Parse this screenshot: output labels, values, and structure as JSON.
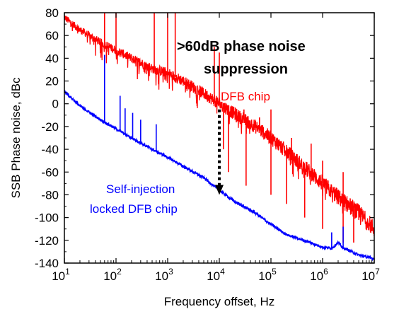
{
  "chart_data": {
    "type": "line",
    "xlabel": "Frequency offset, Hz",
    "ylabel": "SSB Phase noise, dBc",
    "x_scale": "log",
    "xlim": [
      10,
      10000000
    ],
    "ylim": [
      -140,
      80
    ],
    "x_ticks": [
      {
        "value": 10,
        "base": "10",
        "exp": "1"
      },
      {
        "value": 100,
        "base": "10",
        "exp": "2"
      },
      {
        "value": 1000,
        "base": "10",
        "exp": "3"
      },
      {
        "value": 10000,
        "base": "10",
        "exp": "4"
      },
      {
        "value": 100000,
        "base": "10",
        "exp": "5"
      },
      {
        "value": 1000000,
        "base": "10",
        "exp": "6"
      },
      {
        "value": 10000000,
        "base": "10",
        "exp": "7"
      }
    ],
    "y_ticks": [
      80,
      60,
      40,
      20,
      0,
      -20,
      -40,
      -60,
      -80,
      -100,
      -120,
      -140
    ],
    "grid": false,
    "series": [
      {
        "name": "DFB chip",
        "color": "#ff0000",
        "points": [
          [
            10,
            76
          ],
          [
            20,
            65
          ],
          [
            50,
            54
          ],
          [
            100,
            47
          ],
          [
            200,
            40
          ],
          [
            500,
            31
          ],
          [
            1000,
            27
          ],
          [
            2000,
            20
          ],
          [
            5000,
            9
          ],
          [
            10000,
            0
          ],
          [
            20000,
            -9
          ],
          [
            50000,
            -20
          ],
          [
            100000,
            -30
          ],
          [
            200000,
            -42
          ],
          [
            500000,
            -58
          ],
          [
            1000000,
            -70
          ],
          [
            2000000,
            -82
          ],
          [
            5000000,
            -96
          ],
          [
            10000000,
            -110
          ]
        ],
        "spikes": [
          [
            60,
            85
          ],
          [
            100,
            85
          ],
          [
            550,
            85
          ],
          [
            1000,
            82
          ],
          [
            1400,
            82
          ],
          [
            8000,
            50
          ],
          [
            10000,
            45
          ],
          [
            30000,
            -5
          ],
          [
            60000,
            -12
          ],
          [
            100000,
            -5
          ],
          [
            250000,
            -30
          ],
          [
            600000,
            -35
          ],
          [
            1000000,
            -50
          ],
          [
            2500000,
            -60
          ]
        ],
        "dips": [
          [
            12000,
            -40
          ],
          [
            15000,
            -60
          ],
          [
            33000,
            -72
          ],
          [
            100000,
            -80
          ],
          [
            200000,
            -88
          ],
          [
            450000,
            -100
          ],
          [
            1000000,
            -110
          ],
          [
            2500000,
            -122
          ],
          [
            4000000,
            -122
          ]
        ]
      },
      {
        "name": "Self-injection locked DFB chip",
        "color": "#0000ff",
        "points": [
          [
            10,
            11
          ],
          [
            20,
            -2
          ],
          [
            50,
            -14
          ],
          [
            100,
            -22
          ],
          [
            200,
            -30
          ],
          [
            500,
            -40
          ],
          [
            1000,
            -47
          ],
          [
            2000,
            -55
          ],
          [
            5000,
            -65
          ],
          [
            10000,
            -76
          ],
          [
            20000,
            -86
          ],
          [
            50000,
            -96
          ],
          [
            100000,
            -106
          ],
          [
            200000,
            -115
          ],
          [
            500000,
            -121
          ],
          [
            1000000,
            -126
          ],
          [
            1500000,
            -127
          ],
          [
            2000000,
            -122
          ],
          [
            2500000,
            -127
          ],
          [
            3000000,
            -128
          ],
          [
            5000000,
            -133
          ],
          [
            10000000,
            -136
          ]
        ],
        "spikes": [
          [
            60,
            43
          ],
          [
            120,
            7
          ],
          [
            150,
            -4
          ],
          [
            210,
            -8
          ],
          [
            300,
            -14
          ],
          [
            600,
            -18
          ],
          [
            1500000,
            -113
          ],
          [
            2500000,
            -108
          ]
        ]
      }
    ],
    "annotations": [
      {
        "text_line1": ">60dB phase noise",
        "text_line2": "suppression"
      },
      {
        "text": "DFB chip"
      },
      {
        "text_line1": "Self-injection",
        "text_line2": "locked  DFB chip"
      }
    ],
    "arrow": {
      "x": 10000,
      "y_from": -5,
      "y_to": -80
    }
  }
}
